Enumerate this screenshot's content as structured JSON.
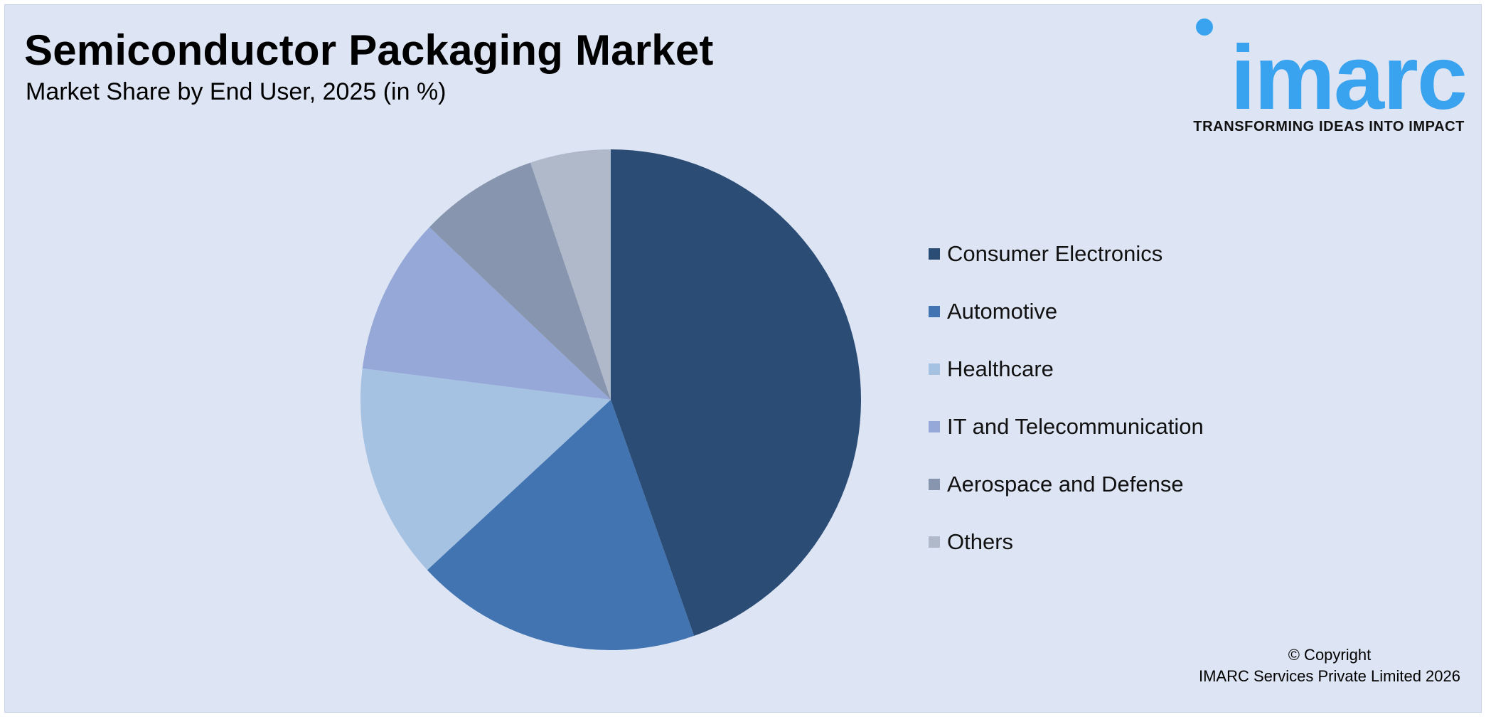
{
  "header": {
    "title": "Semiconductor Packaging Market",
    "subtitle": "Market Share by End User, 2025 (in %)"
  },
  "logo": {
    "wordmark": "imarc",
    "tagline": "TRANSFORMING IDEAS INTO IMPACT",
    "color": "#3aa3ef"
  },
  "footer": {
    "copyright_line1": "© Copyright",
    "copyright_line2": "IMARC Services Private Limited 2026"
  },
  "chart_data": {
    "type": "pie",
    "title": "Semiconductor Packaging Market",
    "subtitle": "Market Share by End User, 2025 (in %)",
    "legend_position": "right",
    "start": "top, clockwise",
    "categories": [
      "Consumer Electronics",
      "Automotive",
      "Healthcare",
      "IT and Telecommunication",
      "Aerospace and Defense",
      "Others"
    ],
    "values": [
      44.6,
      18.5,
      13.9,
      10.1,
      7.7,
      5.2
    ],
    "colors": [
      "#2b4c75",
      "#4174b1",
      "#a6c2e2",
      "#95a8d8",
      "#8796ae",
      "#afb9ca"
    ]
  }
}
